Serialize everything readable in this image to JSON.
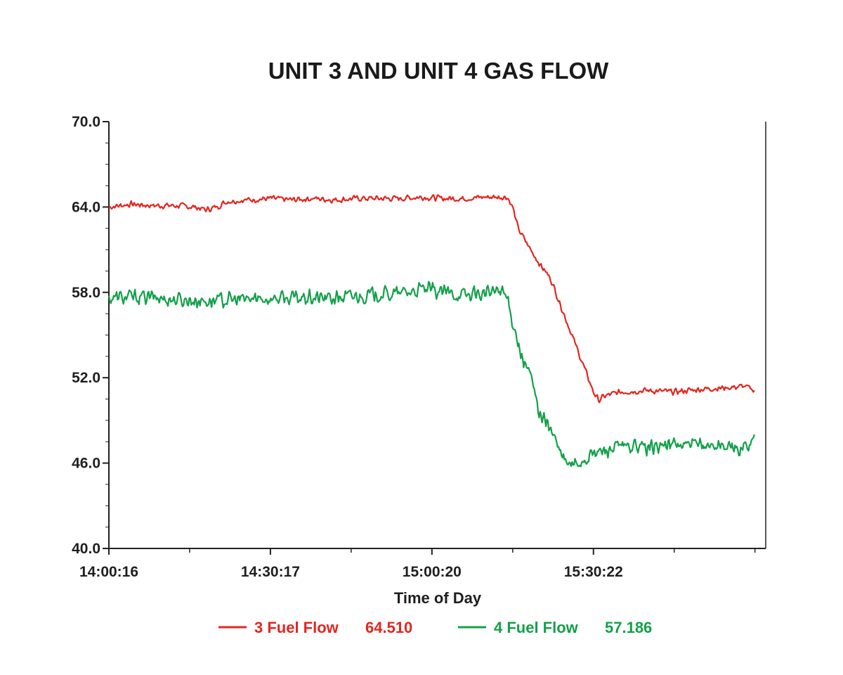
{
  "chart_data": {
    "type": "line",
    "title": "UNIT 3 AND UNIT 4 GAS FLOW",
    "xlabel": "Time of Day",
    "ylabel": "",
    "ylim": [
      40,
      70
    ],
    "y_ticks": [
      "70.0",
      "64.0",
      "58.0",
      "52.0",
      "46.0",
      "40.0"
    ],
    "x_ticks": [
      "14:00:16",
      "14:30:17",
      "15:00:20",
      "15:30:22"
    ],
    "x_unit": "minutes after 14:00:16",
    "xlim": [
      0,
      122
    ],
    "x_tick_values": [
      0,
      30,
      60,
      90
    ],
    "minor_x_tick_values": [
      15,
      45,
      75,
      105,
      120
    ],
    "grid": false,
    "legend_position": "bottom",
    "series": [
      {
        "name": "3 Fuel Flow",
        "legend_value": "64.510",
        "color": "#e3261f",
        "noise": 0.25,
        "points": [
          [
            0,
            64.0
          ],
          [
            4,
            64.2
          ],
          [
            8,
            64.1
          ],
          [
            12,
            64.1
          ],
          [
            16,
            64.0
          ],
          [
            18,
            63.8
          ],
          [
            20,
            64.0
          ],
          [
            22,
            64.4
          ],
          [
            26,
            64.5
          ],
          [
            30,
            64.6
          ],
          [
            34,
            64.5
          ],
          [
            38,
            64.6
          ],
          [
            42,
            64.5
          ],
          [
            46,
            64.6
          ],
          [
            50,
            64.6
          ],
          [
            54,
            64.6
          ],
          [
            58,
            64.7
          ],
          [
            62,
            64.6
          ],
          [
            66,
            64.6
          ],
          [
            70,
            64.7
          ],
          [
            74,
            64.7
          ],
          [
            75,
            64.0
          ],
          [
            76,
            62.5
          ],
          [
            78,
            61.2
          ],
          [
            80,
            60.0
          ],
          [
            82,
            59.0
          ],
          [
            84,
            57.0
          ],
          [
            86,
            55.0
          ],
          [
            88,
            53.0
          ],
          [
            90,
            51.0
          ],
          [
            91,
            50.4
          ],
          [
            92,
            50.7
          ],
          [
            95,
            51.0
          ],
          [
            100,
            51.1
          ],
          [
            105,
            51.0
          ],
          [
            110,
            51.2
          ],
          [
            115,
            51.3
          ],
          [
            118,
            51.4
          ],
          [
            120,
            51.1
          ]
        ]
      },
      {
        "name": "4 Fuel Flow",
        "legend_value": "57.186",
        "color": "#14a04a",
        "noise": 0.65,
        "points": [
          [
            0,
            57.6
          ],
          [
            6,
            57.7
          ],
          [
            12,
            57.5
          ],
          [
            18,
            57.4
          ],
          [
            24,
            57.5
          ],
          [
            30,
            57.6
          ],
          [
            36,
            57.6
          ],
          [
            42,
            57.6
          ],
          [
            48,
            57.8
          ],
          [
            54,
            57.9
          ],
          [
            58,
            58.2
          ],
          [
            62,
            58.0
          ],
          [
            66,
            57.8
          ],
          [
            70,
            57.9
          ],
          [
            73,
            58.2
          ],
          [
            74,
            57.5
          ],
          [
            75,
            56.0
          ],
          [
            76,
            54.5
          ],
          [
            77,
            53.0
          ],
          [
            78,
            52.5
          ],
          [
            79,
            51.0
          ],
          [
            80,
            49.5
          ],
          [
            81,
            49.0
          ],
          [
            82,
            48.5
          ],
          [
            83,
            47.5
          ],
          [
            84,
            46.5
          ],
          [
            85,
            46.0
          ],
          [
            86,
            45.8
          ],
          [
            88,
            46.2
          ],
          [
            90,
            46.6
          ],
          [
            92,
            46.9
          ],
          [
            95,
            47.1
          ],
          [
            100,
            47.1
          ],
          [
            105,
            47.3
          ],
          [
            110,
            47.2
          ],
          [
            114,
            47.3
          ],
          [
            116,
            46.9
          ],
          [
            118,
            47.1
          ],
          [
            120,
            47.9
          ]
        ]
      }
    ]
  }
}
